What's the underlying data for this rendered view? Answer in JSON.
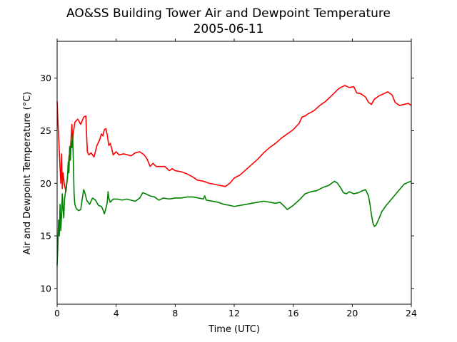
{
  "chart_data": {
    "type": "line",
    "title": "AO&SS Building Tower Air and Dewpoint Temperature",
    "subtitle": "2005-06-11",
    "xlabel": "Time (UTC)",
    "ylabel": "Air and Dewpoint Temperature (°C)",
    "xlim": [
      0,
      24
    ],
    "ylim": [
      8.5,
      33.5
    ],
    "x_ticks": [
      0,
      4,
      8,
      12,
      16,
      20,
      24
    ],
    "y_ticks": [
      10,
      15,
      20,
      25,
      30
    ],
    "grid": false,
    "legend": "none",
    "series": [
      {
        "color": "#ff0000",
        "points": [
          [
            0.0,
            27.8
          ],
          [
            0.05,
            26.0
          ],
          [
            0.1,
            24.5
          ],
          [
            0.15,
            23.0
          ],
          [
            0.2,
            21.5
          ],
          [
            0.25,
            20.0
          ],
          [
            0.3,
            22.8
          ],
          [
            0.35,
            19.5
          ],
          [
            0.4,
            21.0
          ],
          [
            0.5,
            19.8
          ],
          [
            0.6,
            19.2
          ],
          [
            0.7,
            20.5
          ],
          [
            0.8,
            22.5
          ],
          [
            0.9,
            23.2
          ],
          [
            1.0,
            25.6
          ],
          [
            1.05,
            24.0
          ],
          [
            1.1,
            24.8
          ],
          [
            1.2,
            25.8
          ],
          [
            1.4,
            26.1
          ],
          [
            1.6,
            25.6
          ],
          [
            1.8,
            26.3
          ],
          [
            1.95,
            26.4
          ],
          [
            2.0,
            24.5
          ],
          [
            2.05,
            23.0
          ],
          [
            2.15,
            22.7
          ],
          [
            2.3,
            22.9
          ],
          [
            2.5,
            22.5
          ],
          [
            2.7,
            23.6
          ],
          [
            2.9,
            24.2
          ],
          [
            3.0,
            24.7
          ],
          [
            3.1,
            24.5
          ],
          [
            3.2,
            25.1
          ],
          [
            3.3,
            25.2
          ],
          [
            3.4,
            24.6
          ],
          [
            3.5,
            23.6
          ],
          [
            3.6,
            23.8
          ],
          [
            3.7,
            23.3
          ],
          [
            3.8,
            22.7
          ],
          [
            4.0,
            23.0
          ],
          [
            4.2,
            22.7
          ],
          [
            4.5,
            22.8
          ],
          [
            4.8,
            22.7
          ],
          [
            5.0,
            22.6
          ],
          [
            5.3,
            22.9
          ],
          [
            5.6,
            23.0
          ],
          [
            5.9,
            22.7
          ],
          [
            6.1,
            22.3
          ],
          [
            6.3,
            21.6
          ],
          [
            6.5,
            21.9
          ],
          [
            6.7,
            21.6
          ],
          [
            7.0,
            21.6
          ],
          [
            7.3,
            21.6
          ],
          [
            7.6,
            21.2
          ],
          [
            7.8,
            21.4
          ],
          [
            8.0,
            21.2
          ],
          [
            8.4,
            21.1
          ],
          [
            8.8,
            20.9
          ],
          [
            9.2,
            20.6
          ],
          [
            9.5,
            20.3
          ],
          [
            9.9,
            20.2
          ],
          [
            10.3,
            20.0
          ],
          [
            10.7,
            19.9
          ],
          [
            11.0,
            19.8
          ],
          [
            11.4,
            19.7
          ],
          [
            11.7,
            20.0
          ],
          [
            12.0,
            20.5
          ],
          [
            12.4,
            20.8
          ],
          [
            12.8,
            21.3
          ],
          [
            13.2,
            21.8
          ],
          [
            13.6,
            22.3
          ],
          [
            14.0,
            22.9
          ],
          [
            14.4,
            23.4
          ],
          [
            14.8,
            23.8
          ],
          [
            15.2,
            24.3
          ],
          [
            15.6,
            24.7
          ],
          [
            16.0,
            25.1
          ],
          [
            16.4,
            25.7
          ],
          [
            16.6,
            26.3
          ],
          [
            16.8,
            26.4
          ],
          [
            17.0,
            26.6
          ],
          [
            17.4,
            26.9
          ],
          [
            17.8,
            27.4
          ],
          [
            18.2,
            27.8
          ],
          [
            18.5,
            28.2
          ],
          [
            18.8,
            28.6
          ],
          [
            19.0,
            28.9
          ],
          [
            19.2,
            29.1
          ],
          [
            19.5,
            29.3
          ],
          [
            19.8,
            29.1
          ],
          [
            20.1,
            29.2
          ],
          [
            20.3,
            28.6
          ],
          [
            20.6,
            28.5
          ],
          [
            20.9,
            28.2
          ],
          [
            21.1,
            27.7
          ],
          [
            21.3,
            27.5
          ],
          [
            21.5,
            28.0
          ],
          [
            21.8,
            28.3
          ],
          [
            22.1,
            28.5
          ],
          [
            22.4,
            28.7
          ],
          [
            22.7,
            28.4
          ],
          [
            22.9,
            27.7
          ],
          [
            23.2,
            27.4
          ],
          [
            23.5,
            27.5
          ],
          [
            23.8,
            27.6
          ],
          [
            24.0,
            27.4
          ]
        ]
      },
      {
        "color": "#008000",
        "points": [
          [
            0.0,
            12.2
          ],
          [
            0.05,
            14.0
          ],
          [
            0.1,
            16.5
          ],
          [
            0.15,
            15.0
          ],
          [
            0.2,
            18.0
          ],
          [
            0.25,
            15.5
          ],
          [
            0.3,
            17.0
          ],
          [
            0.35,
            19.0
          ],
          [
            0.4,
            17.5
          ],
          [
            0.45,
            16.7
          ],
          [
            0.5,
            18.5
          ],
          [
            0.6,
            19.5
          ],
          [
            0.7,
            20.5
          ],
          [
            0.75,
            22.0
          ],
          [
            0.8,
            21.0
          ],
          [
            0.85,
            23.5
          ],
          [
            0.9,
            22.2
          ],
          [
            0.95,
            24.0
          ],
          [
            1.0,
            23.4
          ],
          [
            1.05,
            24.7
          ],
          [
            1.1,
            22.0
          ],
          [
            1.15,
            19.0
          ],
          [
            1.2,
            18.0
          ],
          [
            1.3,
            17.6
          ],
          [
            1.45,
            17.4
          ],
          [
            1.6,
            17.5
          ],
          [
            1.7,
            18.5
          ],
          [
            1.8,
            19.4
          ],
          [
            1.9,
            19.0
          ],
          [
            2.0,
            18.4
          ],
          [
            2.2,
            18.0
          ],
          [
            2.4,
            18.6
          ],
          [
            2.6,
            18.4
          ],
          [
            2.8,
            17.9
          ],
          [
            3.0,
            17.8
          ],
          [
            3.1,
            17.5
          ],
          [
            3.2,
            17.1
          ],
          [
            3.3,
            17.6
          ],
          [
            3.4,
            18.2
          ],
          [
            3.45,
            19.2
          ],
          [
            3.5,
            18.6
          ],
          [
            3.6,
            18.2
          ],
          [
            3.8,
            18.5
          ],
          [
            4.1,
            18.5
          ],
          [
            4.4,
            18.4
          ],
          [
            4.7,
            18.5
          ],
          [
            5.0,
            18.4
          ],
          [
            5.3,
            18.3
          ],
          [
            5.6,
            18.6
          ],
          [
            5.8,
            19.1
          ],
          [
            6.0,
            19.0
          ],
          [
            6.3,
            18.8
          ],
          [
            6.6,
            18.7
          ],
          [
            6.9,
            18.4
          ],
          [
            7.2,
            18.6
          ],
          [
            7.6,
            18.5
          ],
          [
            8.0,
            18.6
          ],
          [
            8.4,
            18.6
          ],
          [
            8.8,
            18.7
          ],
          [
            9.2,
            18.7
          ],
          [
            9.6,
            18.6
          ],
          [
            9.9,
            18.5
          ],
          [
            10.0,
            18.8
          ],
          [
            10.1,
            18.4
          ],
          [
            10.5,
            18.3
          ],
          [
            10.9,
            18.2
          ],
          [
            11.3,
            18.0
          ],
          [
            11.7,
            17.9
          ],
          [
            12.0,
            17.8
          ],
          [
            12.4,
            17.9
          ],
          [
            12.8,
            18.0
          ],
          [
            13.2,
            18.1
          ],
          [
            13.6,
            18.2
          ],
          [
            14.0,
            18.3
          ],
          [
            14.4,
            18.2
          ],
          [
            14.8,
            18.1
          ],
          [
            15.1,
            18.2
          ],
          [
            15.4,
            17.8
          ],
          [
            15.6,
            17.5
          ],
          [
            15.8,
            17.7
          ],
          [
            16.0,
            17.9
          ],
          [
            16.4,
            18.4
          ],
          [
            16.8,
            19.0
          ],
          [
            17.2,
            19.2
          ],
          [
            17.6,
            19.3
          ],
          [
            18.0,
            19.6
          ],
          [
            18.4,
            19.8
          ],
          [
            18.8,
            20.2
          ],
          [
            19.0,
            20.0
          ],
          [
            19.2,
            19.6
          ],
          [
            19.4,
            19.1
          ],
          [
            19.6,
            19.0
          ],
          [
            19.8,
            19.2
          ],
          [
            20.1,
            19.0
          ],
          [
            20.4,
            19.1
          ],
          [
            20.7,
            19.3
          ],
          [
            20.9,
            19.4
          ],
          [
            21.1,
            18.8
          ],
          [
            21.2,
            18.0
          ],
          [
            21.3,
            17.0
          ],
          [
            21.4,
            16.2
          ],
          [
            21.5,
            15.9
          ],
          [
            21.6,
            16.0
          ],
          [
            21.8,
            16.6
          ],
          [
            22.0,
            17.3
          ],
          [
            22.3,
            17.9
          ],
          [
            22.6,
            18.4
          ],
          [
            22.9,
            18.9
          ],
          [
            23.2,
            19.4
          ],
          [
            23.5,
            19.9
          ],
          [
            23.8,
            20.1
          ],
          [
            24.0,
            20.2
          ]
        ]
      }
    ]
  }
}
